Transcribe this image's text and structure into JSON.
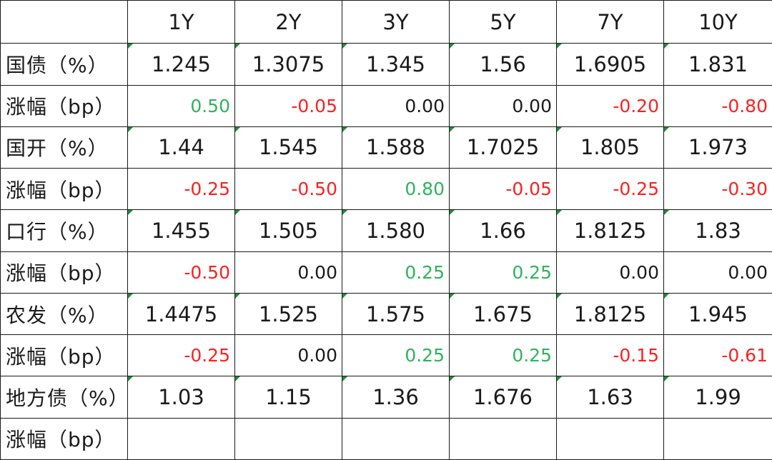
{
  "table": {
    "columns": [
      "1Y",
      "2Y",
      "3Y",
      "5Y",
      "7Y",
      "10Y"
    ],
    "rows": [
      {
        "label": "国债（%）",
        "change_label": "涨幅（bp）",
        "rates": [
          "1.245",
          "1.3075",
          "1.345",
          "1.56",
          "1.6905",
          "1.831"
        ],
        "changes": [
          "0.50",
          "-0.05",
          "0.00",
          "0.00",
          "-0.20",
          "-0.80"
        ]
      },
      {
        "label": "国开（%）",
        "change_label": "涨幅（bp）",
        "rates": [
          "1.44",
          "1.545",
          "1.588",
          "1.7025",
          "1.805",
          "1.973"
        ],
        "changes": [
          "-0.25",
          "-0.50",
          "0.80",
          "-0.05",
          "-0.25",
          "-0.30"
        ]
      },
      {
        "label": "口行（%）",
        "change_label": "涨幅（bp）",
        "rates": [
          "1.455",
          "1.505",
          "1.580",
          "1.66",
          "1.8125",
          "1.83"
        ],
        "changes": [
          "-0.50",
          "0.00",
          "0.25",
          "0.25",
          "0.00",
          "0.00"
        ]
      },
      {
        "label": "农发（%）",
        "change_label": "涨幅（bp）",
        "rates": [
          "1.4475",
          "1.525",
          "1.575",
          "1.675",
          "1.8125",
          "1.945"
        ],
        "changes": [
          "-0.25",
          "0.00",
          "0.25",
          "0.25",
          "-0.15",
          "-0.61"
        ]
      },
      {
        "label": "地方债（%）",
        "change_label": "涨幅（bp）",
        "rates": [
          "1.03",
          "1.15",
          "1.36",
          "1.676",
          "1.63",
          "1.99"
        ],
        "changes": [
          "",
          "",
          "",
          "",
          "",
          ""
        ]
      }
    ],
    "colors": {
      "positive": "#2fb35b",
      "negative": "#ff1f1f",
      "neutral": "#1a1a1a",
      "corner_marker": "#1f8c3a"
    }
  }
}
